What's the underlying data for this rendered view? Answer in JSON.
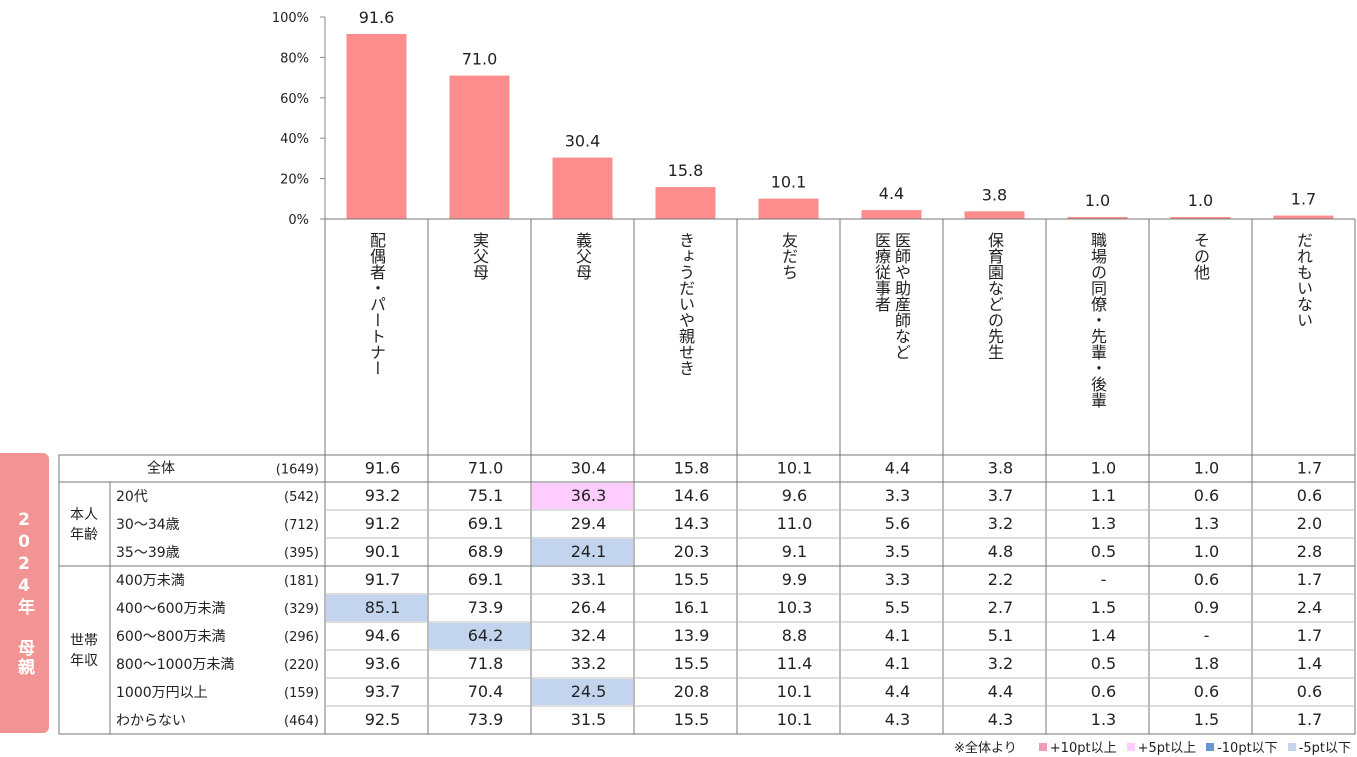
{
  "chart_data": {
    "type": "bar",
    "title": "",
    "categories": [
      "配偶者・パートナー",
      "実父母",
      "義父母",
      "きょうだいや親せき",
      "友だち",
      "医師や助産師など 医療従事者",
      "保育園などの先生",
      "職場の同僚・先輩・後輩",
      "その他",
      "だれもいない"
    ],
    "values": [
      91.6,
      71.0,
      30.4,
      15.8,
      10.1,
      4.4,
      3.8,
      1.0,
      1.0,
      1.7
    ],
    "data_labels": [
      "91.6",
      "71.0",
      "30.4",
      "15.8",
      "10.1",
      "4.4",
      "3.8",
      "1.0",
      "1.0",
      "1.7"
    ],
    "ylim": [
      0,
      100
    ],
    "yticks": [
      "0%",
      "20%",
      "40%",
      "60%",
      "80%",
      "100%"
    ],
    "xlabel": "",
    "ylabel": "",
    "grid": false,
    "bar_color": "#fd8c8c"
  },
  "side_label": "2024年 母親",
  "table": {
    "rows": [
      {
        "group": "",
        "label": "全体",
        "n": "(1649)",
        "values": [
          "91.6",
          "71.0",
          "30.4",
          "15.8",
          "10.1",
          "4.4",
          "3.8",
          "1.0",
          "1.0",
          "1.7"
        ],
        "marks": [
          "",
          "",
          "",
          "",
          "",
          "",
          "",
          "",
          "",
          ""
        ]
      },
      {
        "group": "本人 年齢",
        "label": "20代",
        "n": "(542)",
        "values": [
          "93.2",
          "75.1",
          "36.3",
          "14.6",
          "9.6",
          "3.3",
          "3.7",
          "1.1",
          "0.6",
          "0.6"
        ],
        "marks": [
          "",
          "",
          "p5",
          "",
          "",
          "",
          "",
          "",
          "",
          ""
        ]
      },
      {
        "group": "本人 年齢",
        "label": "30～34歳",
        "n": "(712)",
        "values": [
          "91.2",
          "69.1",
          "29.4",
          "14.3",
          "11.0",
          "5.6",
          "3.2",
          "1.3",
          "1.3",
          "2.0"
        ],
        "marks": [
          "",
          "",
          "",
          "",
          "",
          "",
          "",
          "",
          "",
          ""
        ]
      },
      {
        "group": "本人 年齢",
        "label": "35～39歳",
        "n": "(395)",
        "values": [
          "90.1",
          "68.9",
          "24.1",
          "20.3",
          "9.1",
          "3.5",
          "4.8",
          "0.5",
          "1.0",
          "2.8"
        ],
        "marks": [
          "",
          "",
          "m5",
          "",
          "",
          "",
          "",
          "",
          "",
          ""
        ]
      },
      {
        "group": "世帯 年収",
        "label": "400万未満",
        "n": "(181)",
        "values": [
          "91.7",
          "69.1",
          "33.1",
          "15.5",
          "9.9",
          "3.3",
          "2.2",
          "-",
          "0.6",
          "1.7"
        ],
        "marks": [
          "",
          "",
          "",
          "",
          "",
          "",
          "",
          "",
          "",
          ""
        ]
      },
      {
        "group": "世帯 年収",
        "label": "400～600万未満",
        "n": "(329)",
        "values": [
          "85.1",
          "73.9",
          "26.4",
          "16.1",
          "10.3",
          "5.5",
          "2.7",
          "1.5",
          "0.9",
          "2.4"
        ],
        "marks": [
          "m5",
          "",
          "",
          "",
          "",
          "",
          "",
          "",
          "",
          ""
        ]
      },
      {
        "group": "世帯 年収",
        "label": "600～800万未満",
        "n": "(296)",
        "values": [
          "94.6",
          "64.2",
          "32.4",
          "13.9",
          "8.8",
          "4.1",
          "5.1",
          "1.4",
          "-",
          "1.7"
        ],
        "marks": [
          "",
          "m5",
          "",
          "",
          "",
          "",
          "",
          "",
          "",
          ""
        ]
      },
      {
        "group": "世帯 年収",
        "label": "800～1000万未満",
        "n": "(220)",
        "values": [
          "93.6",
          "71.8",
          "33.2",
          "15.5",
          "11.4",
          "4.1",
          "3.2",
          "0.5",
          "1.8",
          "1.4"
        ],
        "marks": [
          "",
          "",
          "",
          "",
          "",
          "",
          "",
          "",
          "",
          ""
        ]
      },
      {
        "group": "世帯 年収",
        "label": "1000万円以上",
        "n": "(159)",
        "values": [
          "93.7",
          "70.4",
          "24.5",
          "20.8",
          "10.1",
          "4.4",
          "4.4",
          "0.6",
          "0.6",
          "0.6"
        ],
        "marks": [
          "",
          "",
          "m5",
          "",
          "",
          "",
          "",
          "",
          "",
          ""
        ]
      },
      {
        "group": "世帯 年収",
        "label": "わからない",
        "n": "(464)",
        "values": [
          "92.5",
          "73.9",
          "31.5",
          "15.5",
          "10.1",
          "4.3",
          "4.3",
          "1.3",
          "1.5",
          "1.7"
        ],
        "marks": [
          "",
          "",
          "",
          "",
          "",
          "",
          "",
          "",
          "",
          ""
        ]
      }
    ],
    "groups": [
      {
        "label": "本人\n年齢",
        "first_row": 1,
        "last_row": 3
      },
      {
        "label": "世帯\n年収",
        "first_row": 4,
        "last_row": 9
      }
    ],
    "mark_colors": {
      "p10": "#f29ab7",
      "p5": "#ffccff",
      "m10": "#6a95cf",
      "m5": "#c3d5ee"
    }
  },
  "legend": {
    "note": "※全体より",
    "items": [
      {
        "key": "p10",
        "label": "+10pt以上",
        "color": "#f29ab7"
      },
      {
        "key": "p5",
        "label": "+5pt以上",
        "color": "#ffccff"
      },
      {
        "key": "m10",
        "label": "-10pt以下",
        "color": "#6a95cf"
      },
      {
        "key": "m5",
        "label": "-5pt以下",
        "color": "#c3d5ee"
      }
    ]
  }
}
